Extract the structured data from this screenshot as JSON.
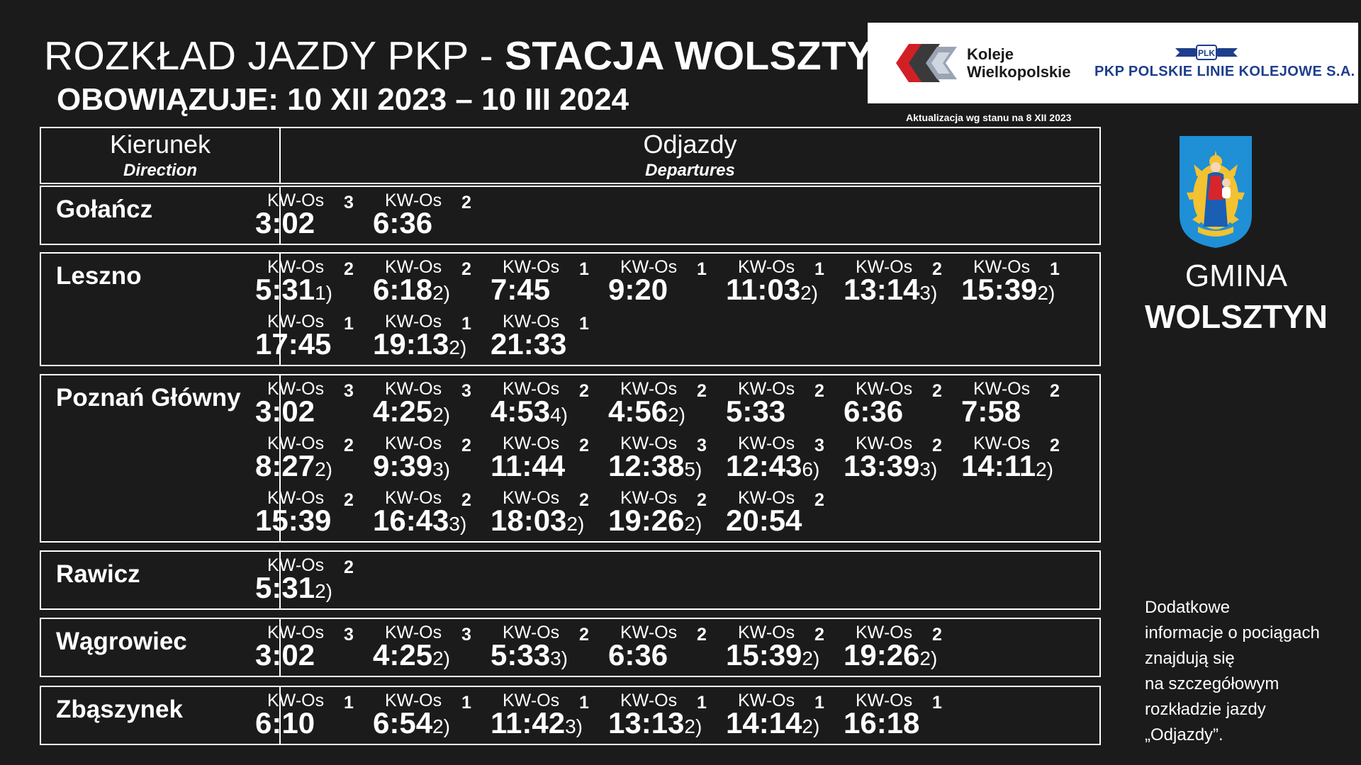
{
  "header": {
    "title_regular": "ROZKŁAD JAZDY PKP - ",
    "title_bold": "STACJA WOLSZTYN",
    "validity": "OBOWIĄZUJE: 10 XII 2023 – 10 III 2024",
    "update_note": "Aktualizacja wg stanu na 8 XII 2023"
  },
  "logos": {
    "kw_line1": "Koleje",
    "kw_line2": "Wielkopolskie",
    "plk_emblem": "PLK",
    "plk_name": "PKP POLSKIE LINIE KOLEJOWE S.A."
  },
  "table": {
    "direction_label": "Kierunek",
    "direction_label_en": "Direction",
    "departures_label": "Odjazdy",
    "departures_label_en": "Departures",
    "sections": [
      {
        "direction": "Gołańcz",
        "departures": [
          {
            "category": "KW-Os",
            "class": "3",
            "time": "3:02",
            "note": ""
          },
          {
            "category": "KW-Os",
            "class": "2",
            "time": "6:36",
            "note": ""
          }
        ]
      },
      {
        "direction": "Leszno",
        "departures": [
          {
            "category": "KW-Os",
            "class": "2",
            "time": "5:31",
            "note": "1)"
          },
          {
            "category": "KW-Os",
            "class": "2",
            "time": "6:18",
            "note": "2)"
          },
          {
            "category": "KW-Os",
            "class": "1",
            "time": "7:45",
            "note": ""
          },
          {
            "category": "KW-Os",
            "class": "1",
            "time": "9:20",
            "note": ""
          },
          {
            "category": "KW-Os",
            "class": "1",
            "time": "11:03",
            "note": "2)"
          },
          {
            "category": "KW-Os",
            "class": "2",
            "time": "13:14",
            "note": "3)"
          },
          {
            "category": "KW-Os",
            "class": "1",
            "time": "15:39",
            "note": "2)"
          },
          {
            "category": "KW-Os",
            "class": "1",
            "time": "17:45",
            "note": ""
          },
          {
            "category": "KW-Os",
            "class": "1",
            "time": "19:13",
            "note": "2)"
          },
          {
            "category": "KW-Os",
            "class": "1",
            "time": "21:33",
            "note": ""
          }
        ]
      },
      {
        "direction": "Poznań Główny",
        "departures": [
          {
            "category": "KW-Os",
            "class": "3",
            "time": "3:02",
            "note": ""
          },
          {
            "category": "KW-Os",
            "class": "3",
            "time": "4:25",
            "note": "2)"
          },
          {
            "category": "KW-Os",
            "class": "2",
            "time": "4:53",
            "note": "4)"
          },
          {
            "category": "KW-Os",
            "class": "2",
            "time": "4:56",
            "note": "2)"
          },
          {
            "category": "KW-Os",
            "class": "2",
            "time": "5:33",
            "note": ""
          },
          {
            "category": "KW-Os",
            "class": "2",
            "time": "6:36",
            "note": ""
          },
          {
            "category": "KW-Os",
            "class": "2",
            "time": "7:58",
            "note": ""
          },
          {
            "category": "KW-Os",
            "class": "2",
            "time": "8:27",
            "note": "2)"
          },
          {
            "category": "KW-Os",
            "class": "2",
            "time": "9:39",
            "note": "3)"
          },
          {
            "category": "KW-Os",
            "class": "2",
            "time": "11:44",
            "note": ""
          },
          {
            "category": "KW-Os",
            "class": "3",
            "time": "12:38",
            "note": "5)"
          },
          {
            "category": "KW-Os",
            "class": "3",
            "time": "12:43",
            "note": "6)"
          },
          {
            "category": "KW-Os",
            "class": "2",
            "time": "13:39",
            "note": "3)"
          },
          {
            "category": "KW-Os",
            "class": "2",
            "time": "14:11",
            "note": "2)"
          },
          {
            "category": "KW-Os",
            "class": "2",
            "time": "15:39",
            "note": ""
          },
          {
            "category": "KW-Os",
            "class": "2",
            "time": "16:43",
            "note": "3)"
          },
          {
            "category": "KW-Os",
            "class": "2",
            "time": "18:03",
            "note": "2)"
          },
          {
            "category": "KW-Os",
            "class": "2",
            "time": "19:26",
            "note": "2)"
          },
          {
            "category": "KW-Os",
            "class": "2",
            "time": "20:54",
            "note": ""
          }
        ]
      },
      {
        "direction": "Rawicz",
        "departures": [
          {
            "category": "KW-Os",
            "class": "2",
            "time": "5:31",
            "note": "2)"
          }
        ]
      },
      {
        "direction": "Wągrowiec",
        "departures": [
          {
            "category": "KW-Os",
            "class": "3",
            "time": "3:02",
            "note": ""
          },
          {
            "category": "KW-Os",
            "class": "3",
            "time": "4:25",
            "note": "2)"
          },
          {
            "category": "KW-Os",
            "class": "2",
            "time": "5:33",
            "note": "3)"
          },
          {
            "category": "KW-Os",
            "class": "2",
            "time": "6:36",
            "note": ""
          },
          {
            "category": "KW-Os",
            "class": "2",
            "time": "15:39",
            "note": "2)"
          },
          {
            "category": "KW-Os",
            "class": "2",
            "time": "19:26",
            "note": "2)"
          }
        ]
      },
      {
        "direction": "Zbąszynek",
        "departures": [
          {
            "category": "KW-Os",
            "class": "1",
            "time": "6:10",
            "note": ""
          },
          {
            "category": "KW-Os",
            "class": "1",
            "time": "6:54",
            "note": "2)"
          },
          {
            "category": "KW-Os",
            "class": "1",
            "time": "11:42",
            "note": "3)"
          },
          {
            "category": "KW-Os",
            "class": "1",
            "time": "13:13",
            "note": "2)"
          },
          {
            "category": "KW-Os",
            "class": "1",
            "time": "14:14",
            "note": "2)"
          },
          {
            "category": "KW-Os",
            "class": "1",
            "time": "16:18",
            "note": ""
          }
        ]
      }
    ]
  },
  "sidebar": {
    "gmina_line1": "GMINA",
    "gmina_line2": "WOLSZTYN",
    "info_lines": [
      "Dodatkowe",
      "informacje o pociągach",
      "znajdują się",
      "na szczegółowym",
      "rozkładzie jazdy",
      "„Odjazdy”."
    ],
    "colors": {
      "crest_blue": "#1f8fd6",
      "crest_gold": "#f2c230"
    }
  }
}
